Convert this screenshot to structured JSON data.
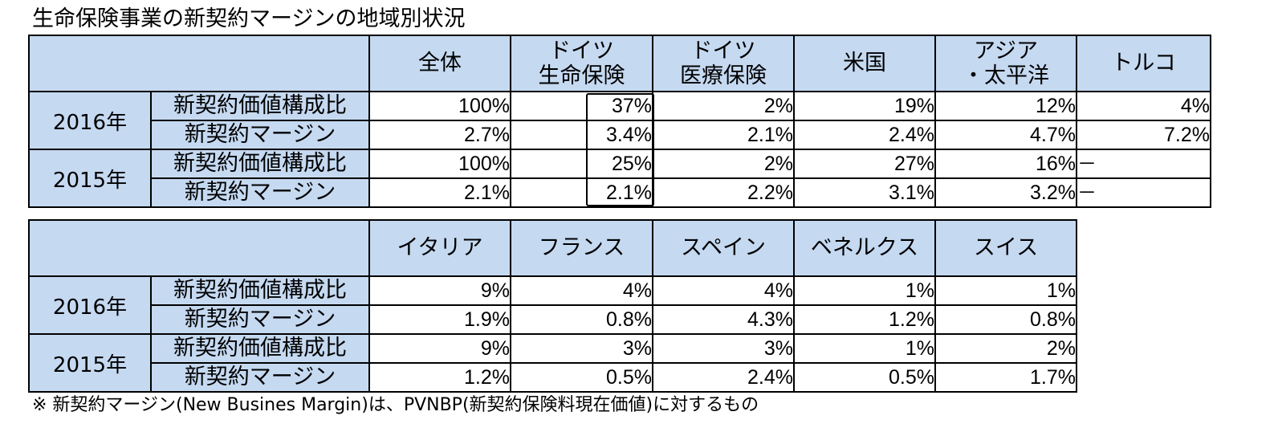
{
  "title": "生命保険事業の新契約マージンの地域別状況",
  "table1": {
    "columns": [
      [
        "全体"
      ],
      [
        "ドイツ",
        "生命保険"
      ],
      [
        "ドイツ",
        "医療保険"
      ],
      [
        "米国"
      ],
      [
        "アジア",
        "・太平洋"
      ],
      [
        "トルコ"
      ]
    ],
    "rows": [
      {
        "year": "2016年",
        "label": "新契約価値構成比",
        "values": [
          "100%",
          "37%",
          "2%",
          "19%",
          "12%",
          "4%"
        ]
      },
      {
        "year": "2016年",
        "label": "新契約マージン",
        "values": [
          "2.7%",
          "3.4%",
          "2.1%",
          "2.4%",
          "4.7%",
          "7.2%"
        ]
      },
      {
        "year": "2015年",
        "label": "新契約価値構成比",
        "values": [
          "100%",
          "25%",
          "2%",
          "27%",
          "16%",
          "－"
        ]
      },
      {
        "year": "2015年",
        "label": "新契約マージン",
        "values": [
          "2.1%",
          "2.1%",
          "2.2%",
          "3.1%",
          "3.2%",
          "－"
        ]
      }
    ]
  },
  "table2": {
    "columns": [
      "イタリア",
      "フランス",
      "スペイン",
      "ベネルクス",
      "スイス"
    ],
    "rows": [
      {
        "year": "2016年",
        "label": "新契約価値構成比",
        "values": [
          "9%",
          "4%",
          "4%",
          "1%",
          "1%"
        ]
      },
      {
        "year": "2016年",
        "label": "新契約マージン",
        "values": [
          "1.9%",
          "0.8%",
          "4.3%",
          "1.2%",
          "0.8%"
        ]
      },
      {
        "year": "2015年",
        "label": "新契約価値構成比",
        "values": [
          "9%",
          "3%",
          "3%",
          "1%",
          "2%"
        ]
      },
      {
        "year": "2015年",
        "label": "新契約マージン",
        "values": [
          "1.2%",
          "0.5%",
          "2.4%",
          "0.5%",
          "1.7%"
        ]
      }
    ]
  },
  "footnote": "※ 新契約マージン(New Busines Margin)は、PVNBP(新契約保険料現在価値)に対するもの"
}
